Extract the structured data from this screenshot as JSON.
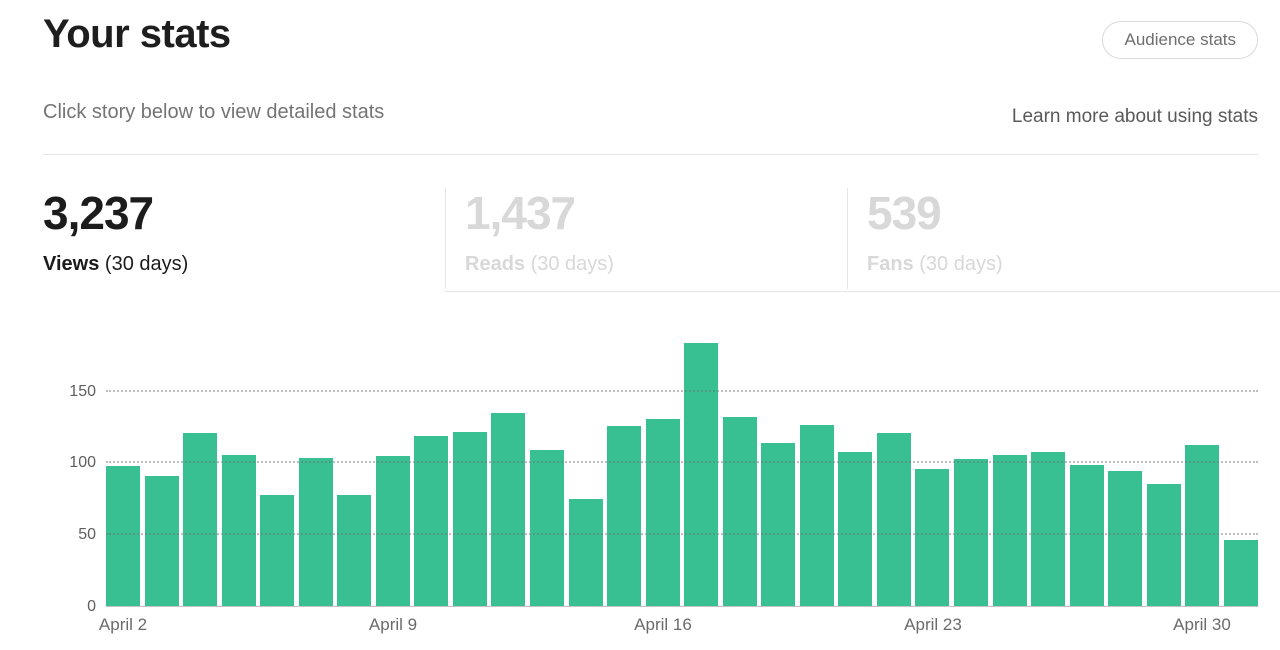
{
  "header": {
    "title": "Your stats",
    "audience_stats_button": "Audience stats",
    "subtitle": "Click story below to view detailed stats",
    "learn_more": "Learn more about using stats"
  },
  "summary_tabs": [
    {
      "value": "3,237",
      "label": "Views",
      "period": "(30 days)",
      "active": true
    },
    {
      "value": "1,437",
      "label": "Reads",
      "period": "(30 days)",
      "active": false
    },
    {
      "value": "539",
      "label": "Fans",
      "period": "(30 days)",
      "active": false
    }
  ],
  "colors": {
    "bar": "#38bf92",
    "active_text": "#1c1c1c",
    "inactive_text": "#d8d8d8",
    "muted_text": "#747474",
    "border": "#e6e6e6"
  },
  "chart_data": {
    "type": "bar",
    "title": "",
    "xlabel": "",
    "ylabel": "",
    "ylim": [
      0,
      195
    ],
    "yticks": [
      0,
      50,
      100,
      150
    ],
    "grid": "dotted-horizontal, drawn over bars",
    "legend": "none",
    "values": [
      98,
      91,
      121,
      106,
      78,
      104,
      78,
      105,
      119,
      122,
      135,
      109,
      75,
      126,
      131,
      184,
      132,
      114,
      127,
      108,
      121,
      96,
      103,
      106,
      108,
      99,
      95,
      86,
      113,
      47
    ],
    "xticks": [
      {
        "index": 0,
        "label": "April 2"
      },
      {
        "index": 7,
        "label": "April 9"
      },
      {
        "index": 14,
        "label": "April 16"
      },
      {
        "index": 21,
        "label": "April 23"
      },
      {
        "index": 28,
        "label": "April 30"
      }
    ]
  }
}
